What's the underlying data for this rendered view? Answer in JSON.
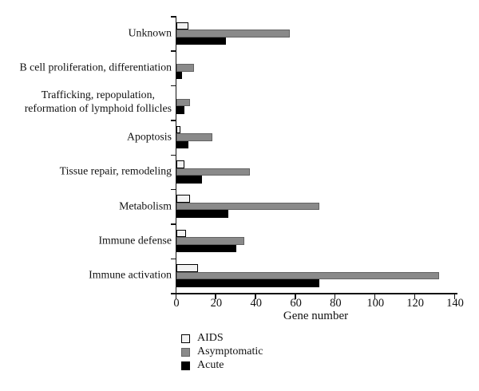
{
  "figure": {
    "background": "#ffffff",
    "axis_color": "#111111",
    "text_color": "#111111"
  },
  "chart_data": {
    "type": "bar",
    "orientation": "horizontal",
    "title": "",
    "xlabel": "Gene number",
    "ylabel": "",
    "xlim": [
      0,
      140
    ],
    "xticks": [
      0,
      20,
      40,
      60,
      80,
      100,
      120,
      140
    ],
    "grid": false,
    "legend_position": "below-chart-left",
    "categories": [
      "Unknown",
      "B cell proliferation, differentiation",
      "Trafficking, repopulation,\nreformation of lymphoid follicles",
      "Apoptosis",
      "Tissue repair, remodeling",
      "Metabolism",
      "Immune defense",
      "Immune activation"
    ],
    "series": [
      {
        "name": "AIDS",
        "fill": "#f2f2f2",
        "border": "#000000",
        "values": [
          6,
          0,
          0,
          2,
          4,
          7,
          5,
          11
        ]
      },
      {
        "name": "Asymptomatic",
        "fill": "#8a8a8a",
        "border": "#636363",
        "values": [
          57,
          9,
          7,
          18,
          37,
          72,
          34,
          132
        ]
      },
      {
        "name": "Acute",
        "fill": "#000000",
        "border": "#000000",
        "values": [
          25,
          3,
          4,
          6,
          13,
          26,
          30,
          72
        ]
      }
    ]
  }
}
